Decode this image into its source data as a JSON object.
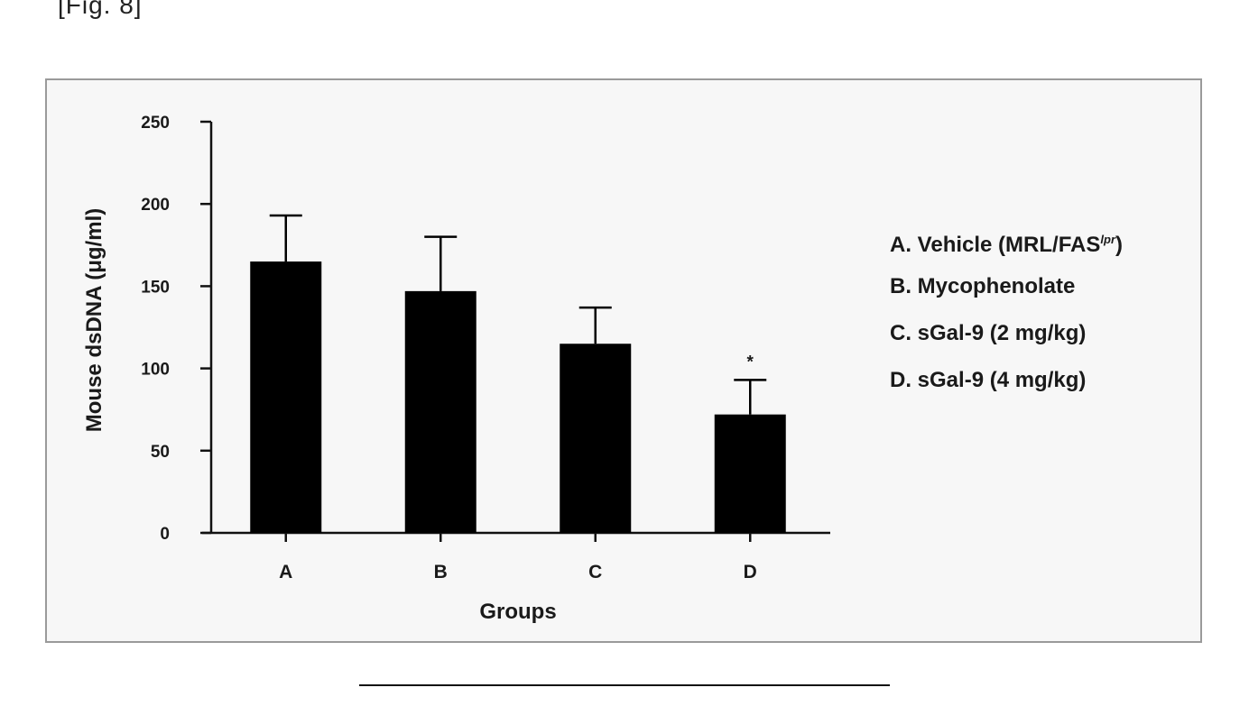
{
  "figure": {
    "label": "[Fig. 8]"
  },
  "chart_data": {
    "type": "bar",
    "categories": [
      "A",
      "B",
      "C",
      "D"
    ],
    "values": [
      165,
      147,
      115,
      72
    ],
    "errors": [
      28,
      33,
      22,
      21
    ],
    "significance": [
      "",
      "",
      "",
      "*"
    ],
    "xlabel": "Groups",
    "ylabel": "Mouse dsDNA (μg/ml)",
    "ylim": [
      0,
      250
    ],
    "yticks": [
      0,
      50,
      100,
      150,
      200,
      250
    ],
    "legend": {
      "position": "right",
      "items": [
        {
          "text": "A. Vehicle (MRL/FAS",
          "sup": "lpr",
          "suffix": ")"
        },
        {
          "text": "B. Mycophenolate"
        },
        {
          "text": "C. sGal-9 (2 mg/kg)"
        },
        {
          "text": "D. sGal-9 (4 mg/kg)"
        }
      ]
    },
    "colors": {
      "bar": "#000000",
      "axis": "#111111"
    }
  }
}
